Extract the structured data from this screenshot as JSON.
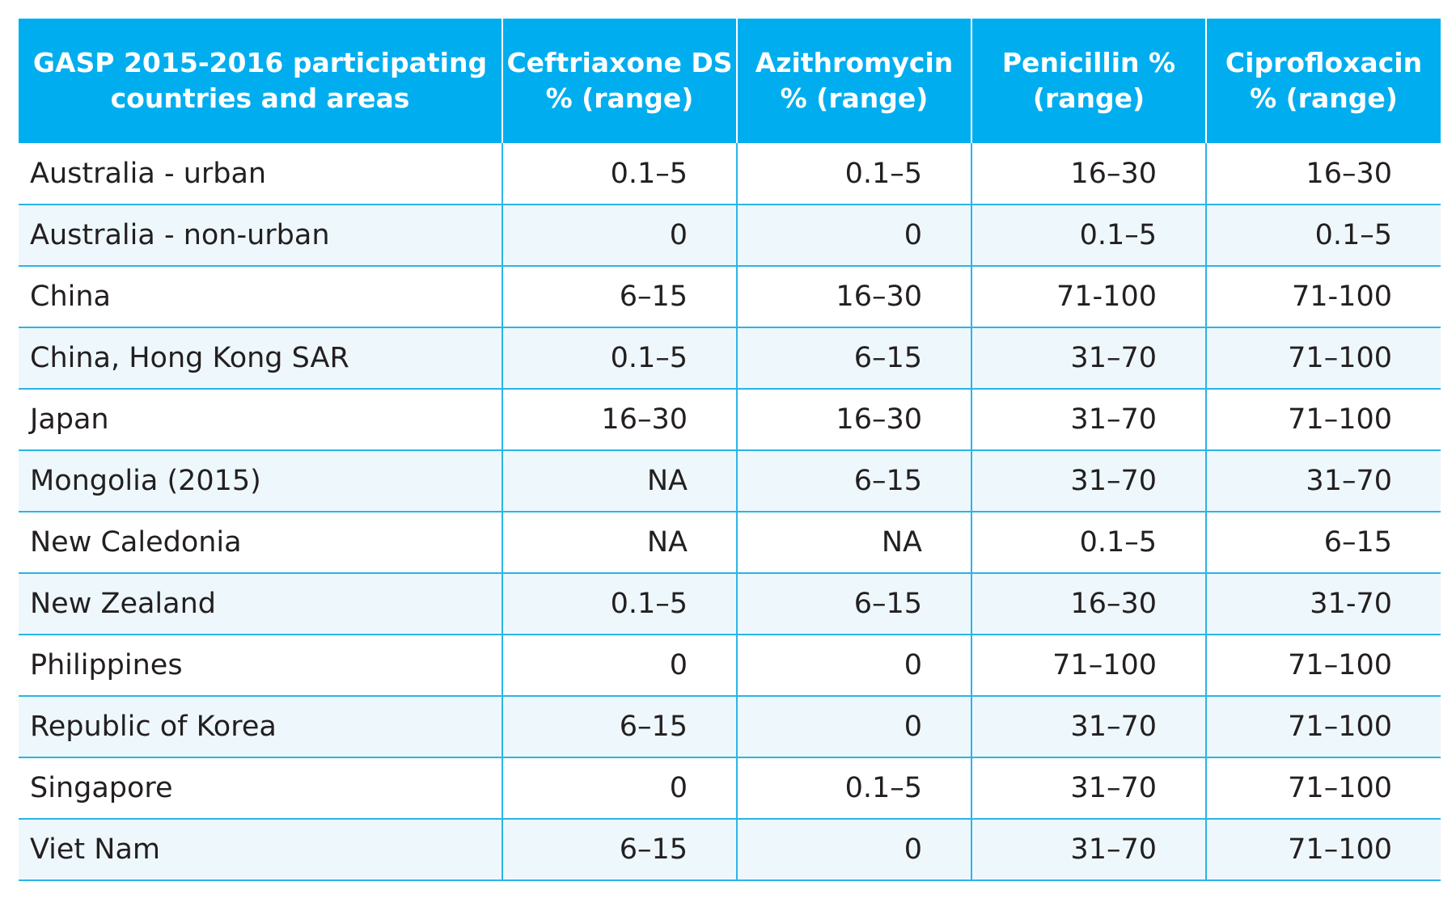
{
  "table": {
    "headers": [
      "GASP 2015-2016 participating countries and areas",
      "Ceftriaxone DS % (range)",
      "Azithromycin % (range)",
      "Penicillin % (range)",
      "Ciprofloxacin % (range)"
    ],
    "rows": [
      [
        "Australia - urban",
        "0.1–5",
        "0.1–5",
        "16–30",
        "16–30"
      ],
      [
        "Australia - non-urban",
        "0",
        "0",
        "0.1–5",
        "0.1–5"
      ],
      [
        "China",
        "6–15",
        "16–30",
        "71-100",
        "71-100"
      ],
      [
        "China, Hong Kong SAR",
        "0.1–5",
        "6–15",
        "31–70",
        "71–100"
      ],
      [
        "Japan",
        "16–30",
        "16–30",
        "31–70",
        "71–100"
      ],
      [
        "Mongolia (2015)",
        "NA",
        "6–15",
        "31–70",
        "31–70"
      ],
      [
        "New Caledonia",
        "NA",
        "NA",
        "0.1–5",
        "6–15"
      ],
      [
        "New Zealand",
        "0.1–5",
        "6–15",
        "16–30",
        "31-70"
      ],
      [
        "Philippines",
        "0",
        "0",
        "71–100",
        "71–100"
      ],
      [
        "Republic of Korea",
        "6–15",
        "0",
        "31–70",
        "71–100"
      ],
      [
        "Singapore",
        "0",
        "0.1–5",
        "31–70",
        "71–100"
      ],
      [
        "Viet Nam",
        "6–15",
        "0",
        "31–70",
        "71–100"
      ]
    ]
  },
  "colors": {
    "header_bg": "#00aeef",
    "header_text": "#ffffff",
    "grid_line": "#29b5e8",
    "row_shade": "#eef8fc"
  }
}
